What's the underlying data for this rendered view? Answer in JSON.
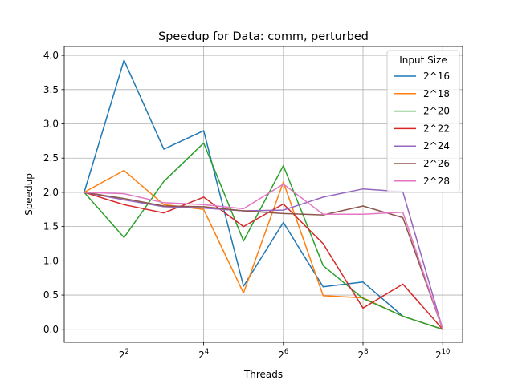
{
  "chart_data": {
    "type": "line",
    "title": "Speedup for Data: comm, perturbed",
    "xlabel": "Threads",
    "ylabel": "Speedup",
    "x_scale": "log2",
    "xlim": [
      1.414,
      1448
    ],
    "ylim": [
      -0.19,
      4.13
    ],
    "x": [
      2,
      4,
      8,
      16,
      32,
      64,
      128,
      256,
      512,
      1024
    ],
    "x_ticks": [
      {
        "value": 4,
        "base": "2",
        "exp": "2"
      },
      {
        "value": 16,
        "base": "2",
        "exp": "4"
      },
      {
        "value": 64,
        "base": "2",
        "exp": "6"
      },
      {
        "value": 256,
        "base": "2",
        "exp": "8"
      },
      {
        "value": 1024,
        "base": "2",
        "exp": "10"
      }
    ],
    "y_ticks": [
      {
        "value": 0.0,
        "label": "0.0"
      },
      {
        "value": 0.5,
        "label": "0.5"
      },
      {
        "value": 1.0,
        "label": "1.0"
      },
      {
        "value": 1.5,
        "label": "1.5"
      },
      {
        "value": 2.0,
        "label": "2.0"
      },
      {
        "value": 2.5,
        "label": "2.5"
      },
      {
        "value": 3.0,
        "label": "3.0"
      },
      {
        "value": 3.5,
        "label": "3.5"
      },
      {
        "value": 4.0,
        "label": "4.0"
      }
    ],
    "grid": true,
    "legend": {
      "title": "Input Size",
      "placement": "top-right"
    },
    "series": [
      {
        "name": "2^16",
        "color": "#1f77b4",
        "values": [
          2.0,
          3.93,
          2.63,
          2.9,
          0.63,
          1.56,
          0.62,
          0.69,
          0.19,
          0.0
        ]
      },
      {
        "name": "2^18",
        "color": "#ff7f0e",
        "values": [
          2.0,
          2.32,
          1.82,
          1.75,
          0.53,
          2.15,
          0.49,
          0.46,
          0.19,
          0.0
        ]
      },
      {
        "name": "2^20",
        "color": "#2ca02c",
        "values": [
          2.0,
          1.34,
          2.16,
          2.72,
          1.29,
          2.39,
          0.93,
          0.45,
          0.19,
          0.0
        ]
      },
      {
        "name": "2^22",
        "color": "#d62728",
        "values": [
          2.0,
          1.82,
          1.7,
          1.93,
          1.5,
          1.83,
          1.25,
          0.31,
          0.66,
          0.0
        ]
      },
      {
        "name": "2^24",
        "color": "#9467bd",
        "values": [
          2.0,
          1.89,
          1.79,
          1.77,
          1.73,
          1.74,
          1.93,
          2.05,
          2.01,
          0.0
        ]
      },
      {
        "name": "2^26",
        "color": "#8c564b",
        "values": [
          2.0,
          1.91,
          1.8,
          1.79,
          1.73,
          1.69,
          1.67,
          1.8,
          1.63,
          0.0
        ]
      },
      {
        "name": "2^28",
        "color": "#e377c2",
        "values": [
          2.0,
          1.98,
          1.85,
          1.82,
          1.76,
          2.12,
          1.68,
          1.68,
          1.71,
          0.0
        ]
      }
    ]
  }
}
